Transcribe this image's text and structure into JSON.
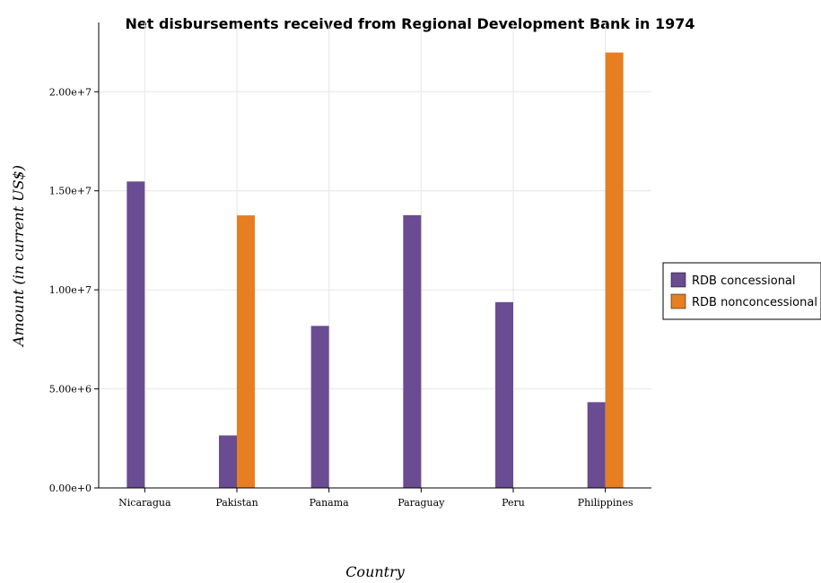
{
  "chart_data": {
    "type": "bar",
    "title": "Net disbursements received from Regional Development Bank in 1974",
    "xlabel": "Country",
    "ylabel": "Amount (in current US$)",
    "categories": [
      "Nicaragua",
      "Pakistan",
      "Panama",
      "Paraguay",
      "Peru",
      "Philippines"
    ],
    "series": [
      {
        "name": "RDB concessional",
        "color": "#6a4c93",
        "values": [
          15470000,
          2650000,
          8180000,
          13770000,
          9380000,
          4330000
        ]
      },
      {
        "name": "RDB nonconcessional",
        "color": "#e67e22",
        "values": [
          0,
          13760000,
          0,
          0,
          0,
          21980000
        ]
      }
    ],
    "yticks": [
      "0.00e+0",
      "5.00e+6",
      "1.00e+7",
      "1.50e+7",
      "2.00e+7"
    ],
    "ytick_values": [
      0,
      5000000,
      10000000,
      15000000,
      20000000
    ],
    "ylim": [
      0,
      23500000
    ],
    "grid": true,
    "legend_position": "right"
  }
}
